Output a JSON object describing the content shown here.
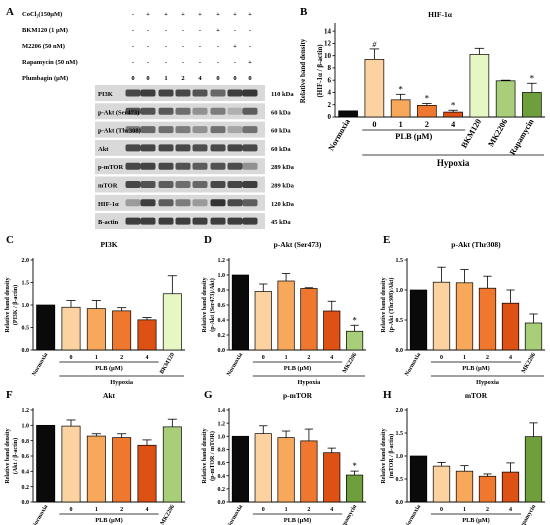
{
  "figure": {
    "panel_A": {
      "letter": "A",
      "treatments": [
        {
          "label": "CoCl₂(150μM)",
          "marks": [
            "-",
            "+",
            "+",
            "+",
            "+",
            "+",
            "+",
            "+"
          ]
        },
        {
          "label": "BKM120 (1 μM)",
          "marks": [
            "-",
            "-",
            "-",
            "-",
            "-",
            "+",
            "-",
            "-"
          ]
        },
        {
          "label": "M2206 (50 nM)",
          "marks": [
            "-",
            "-",
            "-",
            "-",
            "-",
            "-",
            "+",
            "-"
          ]
        },
        {
          "label": "Rapamycin (50 nM)",
          "marks": [
            "-",
            "-",
            "-",
            "-",
            "-",
            "-",
            "-",
            "+"
          ]
        },
        {
          "label": "Plumbagin (μM)",
          "marks": [
            "0",
            "0",
            "1",
            "2",
            "4",
            "0",
            "0",
            "0"
          ]
        }
      ],
      "blots": [
        {
          "name": "PI3K",
          "size": "110 kDa",
          "bands": [
            0.8,
            0.85,
            0.82,
            0.8,
            0.75,
            0.65,
            0.85,
            0.88
          ]
        },
        {
          "name": "p-Akt (Ser473)",
          "size": "60 kDa",
          "bands": [
            0.75,
            0.75,
            0.72,
            0.62,
            0.45,
            0.55,
            0.3,
            0.7
          ]
        },
        {
          "name": "p-Akt (Thr308)",
          "size": "60 kDa",
          "bands": [
            0.55,
            0.65,
            0.62,
            0.55,
            0.45,
            0.6,
            0.35,
            0.6
          ]
        },
        {
          "name": "Akt",
          "size": "60 kDa",
          "bands": [
            0.8,
            0.82,
            0.8,
            0.8,
            0.78,
            0.8,
            0.82,
            0.8
          ]
        },
        {
          "name": "p-mTOR",
          "size": "289 kDa",
          "bands": [
            0.8,
            0.82,
            0.8,
            0.75,
            0.7,
            0.75,
            0.78,
            0.45
          ]
        },
        {
          "name": "mTOR",
          "size": "289 kDa",
          "bands": [
            0.8,
            0.75,
            0.7,
            0.62,
            0.65,
            0.8,
            0.82,
            0.85
          ]
        },
        {
          "name": "HIF-1α",
          "size": "120 kDa",
          "bands": [
            0.4,
            0.85,
            0.7,
            0.55,
            0.4,
            0.9,
            0.8,
            0.7
          ]
        },
        {
          "name": "B-actin",
          "size": "45 kDa",
          "bands": [
            0.85,
            0.85,
            0.85,
            0.85,
            0.85,
            0.85,
            0.85,
            0.85
          ]
        }
      ]
    },
    "colors": {
      "normoxia": "#0a0a0a",
      "plb0": "#fcd3a0",
      "plb1": "#f8a85a",
      "plb2": "#f0782e",
      "plb4": "#dd5114",
      "bkm120": "#e6f7c3",
      "mk2206": "#a8ce79",
      "rapamycin": "#6f9e3c"
    }
  },
  "chart_data": [
    {
      "panel": "B",
      "type": "bar",
      "title": "HIF-1α",
      "ylabel_line1": "Relative band density",
      "ylabel_line2": "(HIF-1α / β-actin)",
      "ylim": [
        0,
        15
      ],
      "yticks": [
        "0",
        "2",
        "4",
        "6",
        "8",
        "10",
        "12",
        "14"
      ],
      "categories": [
        "Normoxia",
        "0",
        "1",
        "2",
        "4",
        "BKM120",
        "MK2206",
        "Rapamycin"
      ],
      "values": [
        1.0,
        9.4,
        2.8,
        1.9,
        0.8,
        10.2,
        5.9,
        4.0
      ],
      "errors": [
        0.0,
        1.7,
        0.9,
        0.3,
        0.3,
        1.0,
        0.1,
        1.5
      ],
      "markers": [
        "",
        "#",
        "*",
        "*",
        "*",
        "",
        "",
        "*"
      ],
      "colors": [
        "#0a0a0a",
        "#fcd3a0",
        "#f8a85a",
        "#f0782e",
        "#dd5114",
        "#e6f7c3",
        "#a8ce79",
        "#6f9e3c"
      ],
      "group_label": "PLB (μM)",
      "condition_label": "Hypoxia"
    },
    {
      "panel": "C",
      "type": "bar",
      "title": "PI3K",
      "ylabel_line1": "Relative band density",
      "ylabel_line2": "(PI3K / β-actin)",
      "ylim": [
        0,
        2.0
      ],
      "yticks": [
        "0.0",
        "0.5",
        "1.0",
        "1.5",
        "2.0"
      ],
      "categories": [
        "Normoxia",
        "0",
        "1",
        "2",
        "4",
        "BKM120"
      ],
      "values": [
        1.0,
        0.95,
        0.92,
        0.87,
        0.67,
        1.25
      ],
      "errors": [
        0.0,
        0.15,
        0.18,
        0.07,
        0.05,
        0.4
      ],
      "markers": [
        "",
        "",
        "",
        "",
        "",
        ""
      ],
      "colors": [
        "#0a0a0a",
        "#fcd3a0",
        "#f8a85a",
        "#f0782e",
        "#dd5114",
        "#e6f7c3"
      ],
      "group_label": "PLB (μM)",
      "condition_label": "Hypoxia"
    },
    {
      "panel": "D",
      "type": "bar",
      "title": "p-Akt (Ser473)",
      "ylabel_line1": "Relative band density",
      "ylabel_line2": "(p-Akt (Ser473)/Akt)",
      "ylim": [
        0,
        1.2
      ],
      "yticks": [
        "0.0",
        "0.2",
        "0.4",
        "0.6",
        "0.8",
        "1.0",
        "1.2"
      ],
      "categories": [
        "Normoxia",
        "0",
        "1",
        "2",
        "4",
        "MK2206"
      ],
      "values": [
        1.0,
        0.78,
        0.92,
        0.82,
        0.52,
        0.25
      ],
      "errors": [
        0.0,
        0.1,
        0.1,
        0.01,
        0.13,
        0.08
      ],
      "markers": [
        "",
        "",
        "",
        "",
        "",
        "*"
      ],
      "colors": [
        "#0a0a0a",
        "#fcd3a0",
        "#f8a85a",
        "#f0782e",
        "#dd5114",
        "#a8ce79"
      ],
      "group_label": "PLB (μM)",
      "condition_label": "Hypoxia"
    },
    {
      "panel": "E",
      "type": "bar",
      "title": "p-Akt (Thr308)",
      "ylabel_line1": "Relative band density",
      "ylabel_line2": "(p-Akt (Thr308)/Akt)",
      "ylim": [
        0,
        1.5
      ],
      "yticks": [
        "0.0",
        "0.5",
        "1.0",
        "1.5"
      ],
      "categories": [
        "Normoxia",
        "0",
        "1",
        "2",
        "4",
        "MK2206"
      ],
      "values": [
        1.0,
        1.13,
        1.12,
        1.03,
        0.78,
        0.45
      ],
      "errors": [
        0.0,
        0.25,
        0.22,
        0.2,
        0.22,
        0.15
      ],
      "markers": [
        "",
        "",
        "",
        "",
        "",
        ""
      ],
      "colors": [
        "#0a0a0a",
        "#fcd3a0",
        "#f8a85a",
        "#f0782e",
        "#dd5114",
        "#a8ce79"
      ],
      "group_label": "PLB (μM)",
      "condition_label": "Hypoxia"
    },
    {
      "panel": "F",
      "type": "bar",
      "title": "Akt",
      "ylabel_line1": "Relative band density",
      "ylabel_line2": "(Akt / β-actin)",
      "ylim": [
        0,
        1.2
      ],
      "yticks": [
        "0.0",
        "0.2",
        "0.4",
        "0.6",
        "0.8",
        "1.0",
        "1.2"
      ],
      "categories": [
        "Normoxia",
        "0",
        "1",
        "2",
        "4",
        "MK2206"
      ],
      "values": [
        1.0,
        0.99,
        0.86,
        0.84,
        0.74,
        0.98
      ],
      "errors": [
        0.0,
        0.08,
        0.03,
        0.05,
        0.07,
        0.1
      ],
      "markers": [
        "",
        "",
        "",
        "",
        "",
        ""
      ],
      "colors": [
        "#0a0a0a",
        "#fcd3a0",
        "#f8a85a",
        "#f0782e",
        "#dd5114",
        "#a8ce79"
      ],
      "group_label": "PLB (μM)",
      "condition_label": "Hypoxia"
    },
    {
      "panel": "G",
      "type": "bar",
      "title": "p-mTOR",
      "ylabel_line1": "Relative band density",
      "ylabel_line2": "(p-mTOR / mTOR)",
      "ylim": [
        0,
        1.4
      ],
      "yticks": [
        "0.0",
        "0.2",
        "0.4",
        "0.6",
        "0.8",
        "1.0",
        "1.2",
        "1.4"
      ],
      "categories": [
        "Normoxia",
        "0",
        "1",
        "2",
        "4",
        "Rapamycin"
      ],
      "values": [
        1.0,
        1.04,
        0.98,
        0.93,
        0.75,
        0.41
      ],
      "errors": [
        0.0,
        0.12,
        0.1,
        0.18,
        0.07,
        0.06
      ],
      "markers": [
        "",
        "",
        "",
        "",
        "",
        "*"
      ],
      "colors": [
        "#0a0a0a",
        "#fcd3a0",
        "#f8a85a",
        "#f0782e",
        "#dd5114",
        "#6f9e3c"
      ],
      "group_label": "PLB (μM)",
      "condition_label": "Hypoxia"
    },
    {
      "panel": "H",
      "type": "bar",
      "title": "mTOR",
      "ylabel_line1": "Relative band density",
      "ylabel_line2": "(mTOR / β-actin)",
      "ylim": [
        0,
        2.0
      ],
      "yticks": [
        "0.0",
        "0.5",
        "1.0",
        "1.5",
        "2.0"
      ],
      "categories": [
        "Normoxia",
        "0",
        "1",
        "2",
        "4",
        "Rapamycin"
      ],
      "values": [
        1.0,
        0.78,
        0.67,
        0.56,
        0.65,
        1.42
      ],
      "errors": [
        0.0,
        0.08,
        0.12,
        0.05,
        0.2,
        0.3
      ],
      "markers": [
        "",
        "",
        "",
        "",
        "",
        ""
      ],
      "colors": [
        "#0a0a0a",
        "#fcd3a0",
        "#f8a85a",
        "#f0782e",
        "#dd5114",
        "#6f9e3c"
      ],
      "group_label": "PLB (μM)",
      "condition_label": "Hypoxia"
    }
  ]
}
